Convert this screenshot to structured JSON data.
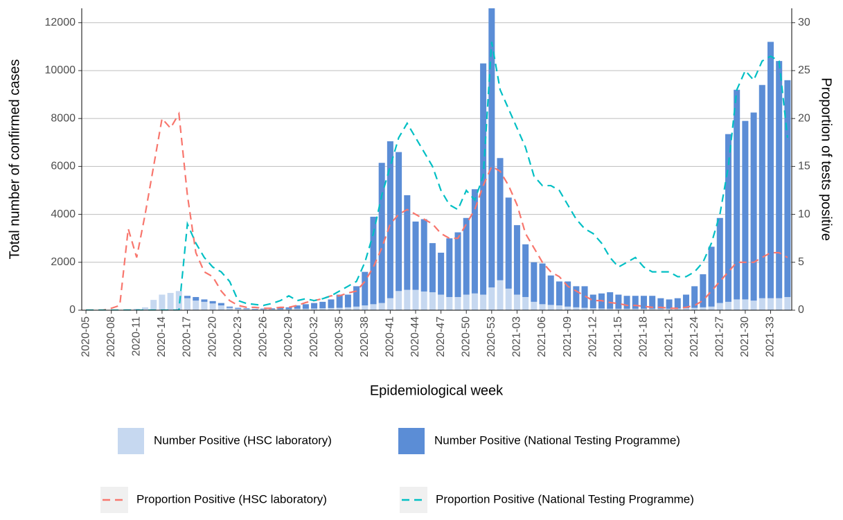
{
  "chart_data": {
    "type": "combo",
    "x_label": "Epidemiological week",
    "y_label": "Total number of confirmed cases",
    "y2_label": "Proportion of tests positive",
    "categories": [
      "2020-05",
      null,
      null,
      "2020-08",
      null,
      null,
      "2020-11",
      null,
      null,
      "2020-14",
      null,
      null,
      "2020-17",
      null,
      null,
      "2020-20",
      null,
      null,
      "2020-23",
      null,
      null,
      "2020-26",
      null,
      null,
      "2020-29",
      null,
      null,
      "2020-32",
      null,
      null,
      "2020-35",
      null,
      null,
      "2020-38",
      null,
      null,
      "2020-41",
      null,
      null,
      "2020-44",
      null,
      null,
      "2020-47",
      null,
      null,
      "2020-50",
      null,
      null,
      "2020-53",
      null,
      null,
      "2021-03",
      null,
      null,
      "2021-06",
      null,
      null,
      "2021-09",
      null,
      null,
      "2021-12",
      null,
      null,
      "2021-15",
      null,
      null,
      "2021-18",
      null,
      null,
      "2021-21",
      null,
      null,
      "2021-24",
      null,
      null,
      "2021-27",
      null,
      null,
      "2021-30",
      null,
      null,
      "2021-33",
      null,
      null
    ],
    "stacked": true,
    "series": [
      {
        "name": "Number Positive (HSC laboratory)",
        "type": "bar",
        "color": "#c6d8f0",
        "values": [
          2,
          3,
          5,
          10,
          20,
          40,
          60,
          120,
          430,
          650,
          720,
          800,
          500,
          400,
          350,
          280,
          200,
          100,
          60,
          50,
          40,
          40,
          40,
          40,
          40,
          60,
          60,
          70,
          80,
          90,
          100,
          120,
          150,
          200,
          250,
          300,
          500,
          800,
          850,
          850,
          780,
          750,
          650,
          550,
          550,
          650,
          700,
          650,
          950,
          1250,
          900,
          650,
          550,
          350,
          250,
          220,
          200,
          150,
          120,
          100,
          80,
          70,
          60,
          60,
          60,
          60,
          60,
          60,
          60,
          60,
          70,
          80,
          100,
          120,
          150,
          300,
          350,
          450,
          450,
          400,
          500,
          500,
          500,
          550
        ]
      },
      {
        "name": "Number Positive (National Testing Programme)",
        "type": "bar",
        "color": "#5b8dd6",
        "values": [
          0,
          0,
          0,
          0,
          0,
          0,
          0,
          0,
          0,
          0,
          0,
          0,
          100,
          150,
          100,
          100,
          100,
          50,
          40,
          30,
          20,
          30,
          40,
          60,
          80,
          140,
          190,
          230,
          270,
          360,
          550,
          530,
          850,
          1400,
          3650,
          5850,
          6550,
          5800,
          3950,
          2850,
          3020,
          2050,
          1750,
          2450,
          2700,
          3200,
          4350,
          9650,
          11750,
          5100,
          3800,
          2900,
          2200,
          1650,
          1700,
          1230,
          1000,
          1050,
          880,
          900,
          570,
          630,
          690,
          590,
          540,
          540,
          540,
          540,
          440,
          390,
          430,
          570,
          900,
          1380,
          2500,
          3550,
          7000,
          8750,
          7450,
          7850,
          8900,
          10700,
          9900,
          9050
        ]
      },
      {
        "name": "Proportion Positive (HSC laboratory)",
        "type": "line",
        "axis": "y2",
        "color": "#f8766d",
        "values": [
          0,
          0,
          0,
          0.2,
          0.5,
          8.5,
          5.5,
          10,
          15,
          20,
          19,
          20.5,
          12,
          6,
          4,
          3.5,
          2,
          1,
          0.5,
          0.3,
          0.3,
          0.2,
          0.2,
          0.3,
          0.3,
          0.5,
          0.8,
          1,
          1.2,
          1.5,
          1.5,
          1.8,
          2,
          3,
          4.5,
          6.5,
          9,
          10,
          10.5,
          10,
          9.5,
          9,
          8,
          7.5,
          7.5,
          9,
          10.5,
          13,
          15,
          14.5,
          13,
          11,
          8,
          6.5,
          5,
          4,
          3.5,
          2.5,
          2,
          1.5,
          1,
          1,
          0.8,
          0.7,
          0.5,
          0.5,
          0.4,
          0.3,
          0.3,
          0.2,
          0.2,
          0.3,
          0.5,
          1,
          2,
          3,
          4,
          5,
          5,
          5,
          5.5,
          6,
          6,
          5.5
        ]
      },
      {
        "name": "Proportion Positive (National Testing Programme)",
        "type": "line",
        "axis": "y2",
        "color": "#00bfc4",
        "values": [
          0,
          0,
          0,
          0,
          0,
          0,
          0,
          0,
          0,
          0,
          0,
          0,
          9,
          7,
          5.5,
          4.5,
          4,
          3,
          1,
          0.7,
          0.6,
          0.5,
          0.7,
          1,
          1.5,
          1,
          1.2,
          1,
          1.2,
          1.5,
          2,
          2.5,
          3,
          5,
          8,
          12,
          15,
          18,
          19.5,
          18,
          16.5,
          15,
          12.5,
          11,
          10.5,
          12.5,
          11.5,
          14,
          28,
          23,
          21,
          19,
          17,
          14,
          13,
          13,
          12.5,
          11,
          9.5,
          8.5,
          8,
          7,
          5.5,
          4.5,
          5,
          5.5,
          4.5,
          4,
          4,
          4,
          3.5,
          3.5,
          4,
          5,
          7,
          10,
          15,
          23,
          25,
          24,
          26,
          26.5,
          26,
          18
        ]
      }
    ],
    "ylim": [
      0,
      12600
    ],
    "yticks": [
      0,
      2000,
      4000,
      6000,
      8000,
      10000,
      12000
    ],
    "y2lim": [
      0,
      31.5
    ],
    "y2ticks": [
      0,
      5,
      10,
      15,
      20,
      25,
      30
    ],
    "grid": true,
    "legend": "bottom"
  }
}
